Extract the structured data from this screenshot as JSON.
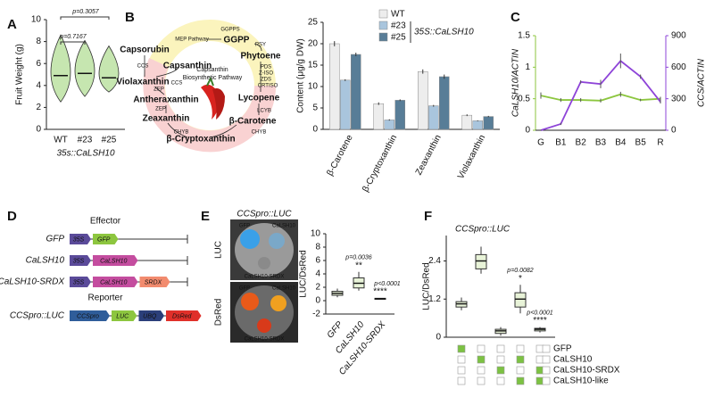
{
  "panel_labels": [
    "A",
    "B",
    "C",
    "D",
    "E",
    "F"
  ],
  "chart_data": [
    {
      "type": "violin",
      "y_label": "Fruit Weight (g)",
      "categories": [
        "WT",
        "#23",
        "#25"
      ],
      "x_label": "35s::CaLSH10",
      "medians": [
        4.9,
        5.1,
        4.7
      ],
      "mins": [
        2.5,
        3,
        3.4
      ],
      "maxs": [
        8.6,
        8.1,
        7.6
      ],
      "color": "#c6e6b0",
      "ylim": [
        0,
        10
      ],
      "yticks": [
        0,
        2,
        4,
        6,
        8,
        10
      ],
      "p_values": [
        "p=0.7167",
        "p=0.3057"
      ]
    },
    {
      "type": "bar",
      "y_label": "Content (μg/g DW)",
      "categories": [
        "β-Carotene",
        "β-Cryptoxanthin",
        "Zeaxanthin",
        "Violaxanthin"
      ],
      "legend_title": "35S::CaLSH10",
      "series": [
        {
          "name": "WT",
          "color": "#ededed",
          "values": [
            20,
            6,
            13.5,
            3.3
          ],
          "errors": [
            0.6,
            0.3,
            0.5,
            0.2
          ]
        },
        {
          "name": "#23",
          "color": "#a9c5dd",
          "values": [
            11.5,
            2.2,
            5.5,
            2
          ],
          "errors": [
            0.2,
            0.15,
            0.2,
            0.1
          ]
        },
        {
          "name": "#25",
          "color": "#587d97",
          "values": [
            17.5,
            6.8,
            12.3,
            3
          ],
          "errors": [
            0.4,
            0.2,
            0.5,
            0.15
          ]
        }
      ],
      "ylim": [
        0,
        25
      ],
      "yticks": [
        0,
        5,
        10,
        15,
        20,
        25
      ]
    },
    {
      "type": "line",
      "categories": [
        "G",
        "B1",
        "B2",
        "B3",
        "B4",
        "B5",
        "R"
      ],
      "y_label": "CaLSH10/ACTIN",
      "y2_label": "CCS/ACTIN",
      "series": [
        {
          "color": "#8cc63f",
          "values": [
            0.55,
            0.48,
            0.48,
            0.47,
            0.57,
            0.48,
            0.5
          ],
          "errors": [
            0.05,
            0.03,
            0.03,
            0.03,
            0.04,
            0.02,
            0.03
          ]
        },
        {
          "color": "#8e44d8",
          "axis": "y2",
          "values": [
            0,
            60,
            460,
            440,
            660,
            510,
            270
          ],
          "errors": [
            5,
            10,
            15,
            40,
            70,
            20,
            15
          ]
        }
      ],
      "ylim": [
        0,
        1.5
      ],
      "yticks": [
        0,
        0.5,
        1,
        1.5
      ],
      "y2lim": [
        0,
        900
      ],
      "y2ticks": [
        0,
        300,
        600,
        900
      ]
    },
    {
      "type": "box",
      "y_label": "LUC/DsRed",
      "categories": [
        "GFP",
        "CaLSH10",
        "CaLSH10-SRDX"
      ],
      "boxes": [
        {
          "min": 0.5,
          "q1": 0.8,
          "median": 1.1,
          "q3": 1.4,
          "max": 1.8
        },
        {
          "min": 1.5,
          "q1": 1.9,
          "median": 2.6,
          "q3": 3.4,
          "max": 4.3
        },
        {
          "min": 0.15,
          "q1": 0.2,
          "median": 0.3,
          "q3": 0.35,
          "max": 0.4
        }
      ],
      "color": "#e8f3d8",
      "p_values": [
        null,
        "p=0.0036",
        "p<0.0001"
      ],
      "stars": [
        null,
        "**",
        "****"
      ],
      "ylim": [
        -2,
        10
      ],
      "yticks": [
        -2,
        0,
        2,
        4,
        6,
        8,
        10
      ]
    },
    {
      "type": "box",
      "title": "CCSpro::LUC",
      "y_label": "LUC/DsRed",
      "boxes": [
        {
          "min": 0.85,
          "q1": 0.95,
          "median": 1.05,
          "q3": 1.12,
          "max": 1.25
        },
        {
          "min": 2.0,
          "q1": 2.15,
          "median": 2.4,
          "q3": 2.6,
          "max": 2.85
        },
        {
          "min": 0.05,
          "q1": 0.12,
          "median": 0.2,
          "q3": 0.25,
          "max": 0.32
        },
        {
          "min": 0.75,
          "q1": 0.95,
          "median": 1.2,
          "q3": 1.4,
          "max": 1.65
        },
        {
          "min": 0.15,
          "q1": 0.2,
          "median": 0.25,
          "q3": 0.28,
          "max": 0.32
        }
      ],
      "color": "#e8f3d8",
      "p_values": [
        null,
        null,
        null,
        "p=0.0082",
        "p<0.0001"
      ],
      "stars": [
        null,
        null,
        null,
        "*",
        "****"
      ],
      "ylim": [
        0,
        3.2
      ],
      "yticks": [
        0,
        1.2,
        2.4
      ],
      "rows": [
        {
          "label": "GFP",
          "present": [
            true,
            false,
            false,
            false,
            false
          ]
        },
        {
          "label": "CaLSH10",
          "present": [
            false,
            true,
            false,
            true,
            false
          ]
        },
        {
          "label": "CaLSH10-SRDX",
          "present": [
            false,
            false,
            true,
            false,
            true
          ]
        },
        {
          "label": "CaLSH10-like",
          "present": [
            false,
            false,
            false,
            true,
            true
          ]
        }
      ]
    }
  ],
  "pathway": {
    "title_lines": [
      "Capsanthin",
      "Biosynthetic Pathway"
    ],
    "source": "MEP Pathway",
    "metabolites": [
      "GGPP",
      "Phytoene",
      "Lycopene",
      "β-Carotene",
      "β-Cryptoxanthin",
      "Zeaxanthin",
      "Antheraxanthin",
      "Violaxanthin"
    ],
    "products": [
      "Capsanthin",
      "Capsorubin"
    ],
    "enzymes": [
      "GGPPS",
      "PSY",
      "PDS",
      "Z-ISO",
      "ZDS",
      "CRTISO",
      "LCYB",
      "CHYB",
      "CHYB",
      "ZEP",
      "ZEP",
      "CCS",
      "CCS"
    ]
  },
  "constructs": {
    "effector_title": "Effector",
    "reporter_title": "Reporter",
    "effectors": [
      {
        "name": "GFP",
        "parts": [
          "35S",
          "GFP"
        ]
      },
      {
        "name": "CaLSH10",
        "parts": [
          "35S",
          "CaLSH10"
        ]
      },
      {
        "name": "CaLSH10-SRDX",
        "parts": [
          "35S",
          "CaLSH10",
          "SRDX"
        ]
      }
    ],
    "reporter": {
      "name": "CCSpro::LUC",
      "parts": [
        "CCSpro",
        "LUC",
        "UBQ",
        "DsRed"
      ]
    }
  },
  "images": {
    "title": "CCSpro::LUC",
    "row_labels": [
      "LUC",
      "DsRed"
    ],
    "spot_labels": [
      "GFP",
      "CaLSH10",
      "CaLSH10-SRDX"
    ]
  }
}
